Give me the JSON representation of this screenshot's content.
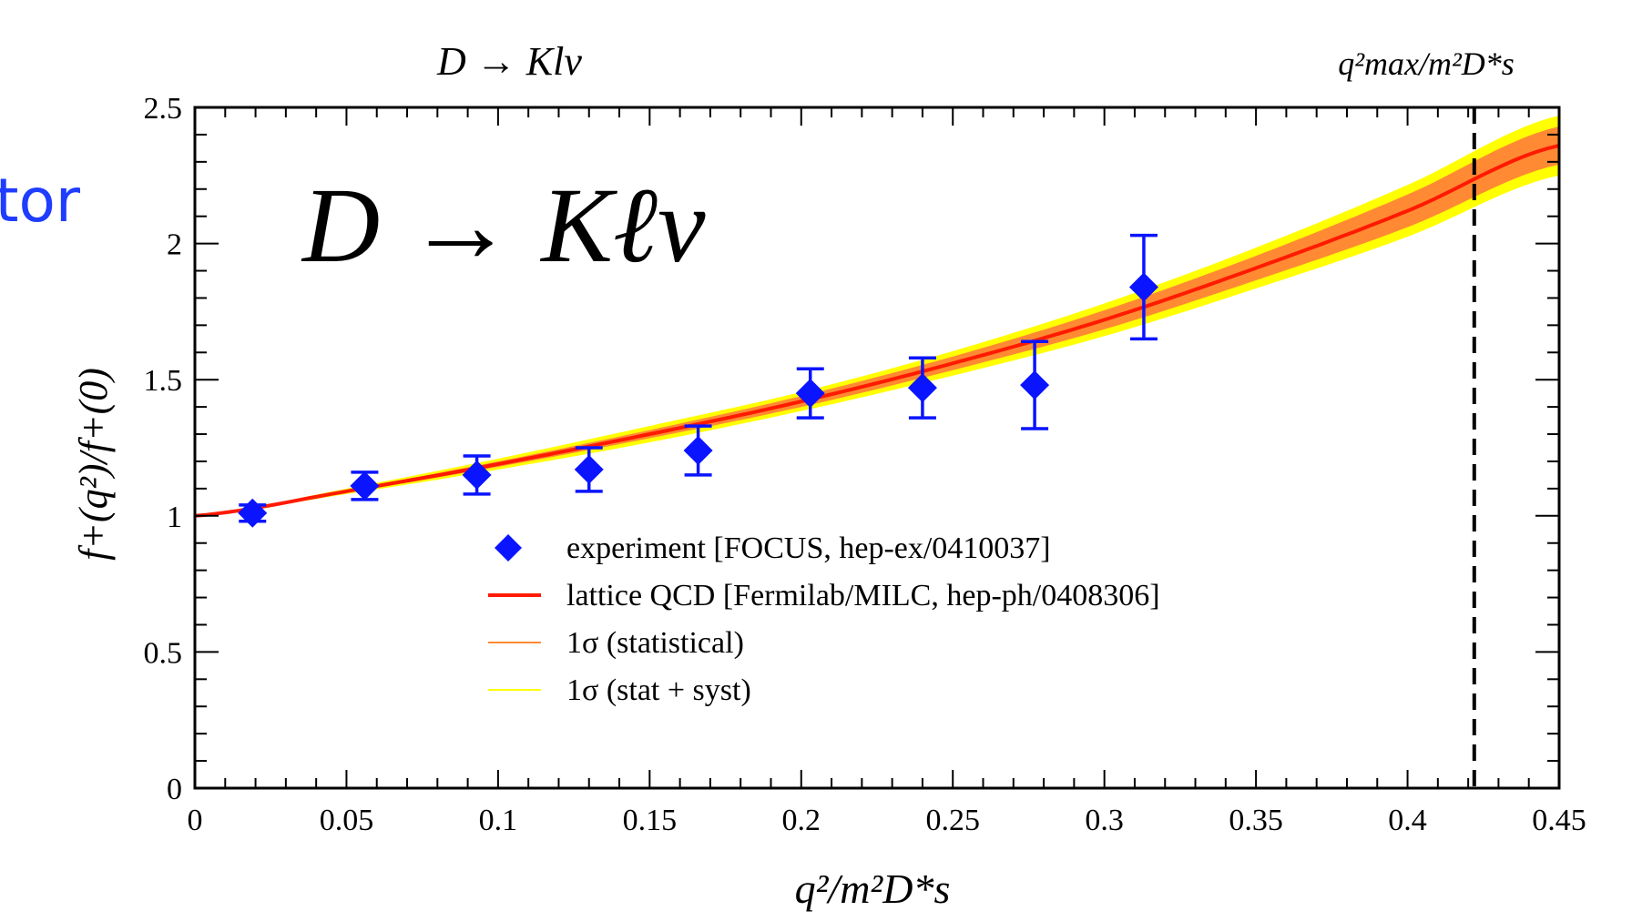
{
  "side_text": "tor",
  "colors": {
    "side_text": "#1f3dff",
    "experiment": "#0a14ff",
    "lattice": "#ff1a00",
    "band_stat": "#ff8a33",
    "band_syst": "#ffff00",
    "axis": "#000000"
  },
  "chart_data": {
    "type": "scatter",
    "top_title": "D → Klν",
    "big_label": "D → Kℓν",
    "xlabel": "q²/m²D*s",
    "ylabel": "f+(q²)/f+(0)",
    "top_right_label": "q²max/m²D*s",
    "xlim": [
      0,
      0.45
    ],
    "ylim": [
      0,
      2.5
    ],
    "x_ticks": [
      "0",
      "0.05",
      "0.1",
      "0.15",
      "0.2",
      "0.25",
      "0.3",
      "0.35",
      "0.4",
      "0.45"
    ],
    "y_ticks": [
      "0",
      "0.5",
      "1",
      "1.5",
      "2",
      "2.5"
    ],
    "x_tick_values": [
      0,
      0.05,
      0.1,
      0.15,
      0.2,
      0.25,
      0.3,
      0.35,
      0.4,
      0.45
    ],
    "y_tick_values": [
      0,
      0.5,
      1,
      1.5,
      2,
      2.5
    ],
    "qmax_x": 0.422,
    "experiment": [
      {
        "x": 0.019,
        "y": 1.01,
        "err": 0.03
      },
      {
        "x": 0.056,
        "y": 1.11,
        "err": 0.05
      },
      {
        "x": 0.093,
        "y": 1.15,
        "err": 0.07
      },
      {
        "x": 0.13,
        "y": 1.17,
        "err": 0.08
      },
      {
        "x": 0.166,
        "y": 1.24,
        "err": 0.09
      },
      {
        "x": 0.203,
        "y": 1.45,
        "err": 0.09
      },
      {
        "x": 0.24,
        "y": 1.47,
        "err": 0.11
      },
      {
        "x": 0.277,
        "y": 1.48,
        "err": 0.16
      },
      {
        "x": 0.313,
        "y": 1.84,
        "err": 0.19
      }
    ],
    "lattice_curve": {
      "x": [
        0,
        0.05,
        0.1,
        0.15,
        0.2,
        0.25,
        0.3,
        0.35,
        0.4,
        0.45
      ],
      "y": [
        1.0,
        1.09,
        1.19,
        1.3,
        1.42,
        1.56,
        1.72,
        1.91,
        2.12,
        2.36
      ],
      "stat_err": [
        0.0,
        0.005,
        0.01,
        0.015,
        0.02,
        0.025,
        0.035,
        0.045,
        0.06,
        0.07
      ],
      "total_err": [
        0.0,
        0.01,
        0.02,
        0.03,
        0.035,
        0.045,
        0.06,
        0.075,
        0.095,
        0.11
      ]
    },
    "legend": [
      {
        "key": "experiment",
        "label": "experiment [FOCUS, hep-ex/0410037]"
      },
      {
        "key": "lattice",
        "label": "lattice QCD [Fermilab/MILC, hep-ph/0408306]"
      },
      {
        "key": "band_stat",
        "label": "1σ (statistical)"
      },
      {
        "key": "band_syst",
        "label": "1σ (stat + syst)"
      }
    ],
    "legend_position": "lower-center"
  }
}
